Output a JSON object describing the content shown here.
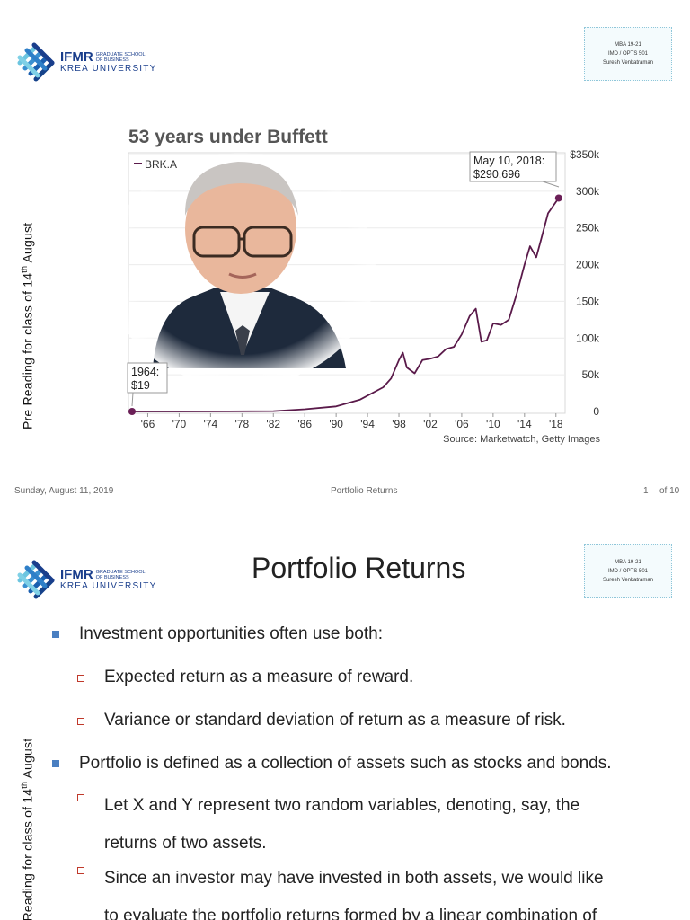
{
  "slide1": {
    "logo": {
      "main": "IFMR",
      "sub_line1": "GRADUATE SCHOOL",
      "sub_line2": "OF BUSINESS",
      "university": "KREA UNIVERSITY"
    },
    "course": {
      "line1": "MBA 19-21",
      "line2": "IMD / OPTS 501",
      "line3": "Suresh Venkatraman"
    },
    "side_text": {
      "before": "Pre Reading  for class of  14",
      "sup": "th",
      "after": " August"
    },
    "footer": {
      "date": "Sunday, August 11, 2019",
      "title": "Portfolio Returns",
      "page": "1",
      "of": "of  10"
    }
  },
  "chart_data": {
    "type": "line",
    "title": "53 years under Buffett",
    "legend": "BRK.A",
    "series": [
      {
        "name": "BRK.A",
        "x": [
          1964,
          1970,
          1976,
          1982,
          1986,
          1990,
          1993,
          1996,
          1997,
          1998,
          1998.5,
          1999,
          2000,
          2001,
          2002,
          2003,
          2004,
          2005,
          2006,
          2007,
          2007.8,
          2008.5,
          2009.2,
          2010,
          2011,
          2012,
          2013,
          2014,
          2014.7,
          2015.5,
          2016,
          2017,
          2018.35
        ],
        "y": [
          19,
          40,
          90,
          500,
          3000,
          7000,
          16000,
          33000,
          45000,
          70000,
          80000,
          60000,
          52000,
          70000,
          72000,
          75000,
          85000,
          88000,
          105000,
          130000,
          140000,
          95000,
          97000,
          120000,
          118000,
          125000,
          160000,
          200000,
          225000,
          210000,
          230000,
          270000,
          290696
        ]
      }
    ],
    "x_ticks": [
      "'66",
      "'70",
      "'74",
      "'78",
      "'82",
      "'86",
      "'90",
      "'94",
      "'98",
      "'02",
      "'06",
      "'10",
      "'14",
      "'18"
    ],
    "y_ticks": [
      "0",
      "50k",
      "100k",
      "150k",
      "200k",
      "250k",
      "300k",
      "$350k"
    ],
    "xlim": [
      1964,
      2018.6
    ],
    "ylim": [
      0,
      350000
    ],
    "annotations": [
      {
        "line1": "1964:",
        "line2": "$19"
      },
      {
        "line1": "May 10, 2018:",
        "line2": "$290,696"
      }
    ],
    "source": "Source: Marketwatch, Getty Images",
    "line_color": "#5a1a4a"
  },
  "slide2": {
    "title": "Portfolio Returns",
    "bullets": [
      {
        "level": 1,
        "text": "Investment opportunities often use both:"
      },
      {
        "level": 2,
        "text": "Expected return as a measure of reward."
      },
      {
        "level": 2,
        "text": "Variance or standard deviation of return as a measure of risk."
      },
      {
        "level": 1,
        "text": "Portfolio is defined as a collection of assets such as stocks and bonds."
      },
      {
        "level": 2,
        "line1": "Let X and Y represent two random variables, denoting, say, the",
        "line2": "returns of two assets."
      },
      {
        "level": 2,
        "line1": "Since an investor may have invested in both assets, we would like",
        "line2": "to evaluate the portfolio returns formed by a linear combination of"
      }
    ]
  }
}
